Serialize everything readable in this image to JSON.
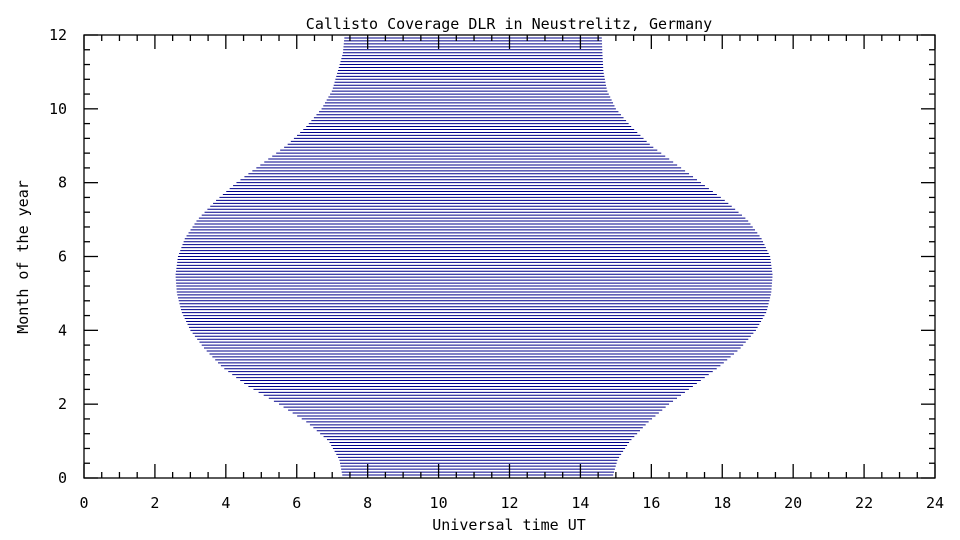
{
  "chart_data": {
    "type": "area",
    "title": "Callisto Coverage DLR in Neustrelitz, Germany",
    "xlabel": "Universal time UT",
    "ylabel": "Month of the year",
    "xlim": [
      0,
      24
    ],
    "ylim": [
      0,
      12
    ],
    "xticks": [
      0,
      2,
      4,
      6,
      8,
      10,
      12,
      14,
      16,
      18,
      20,
      22,
      24
    ],
    "yticks": [
      0,
      2,
      4,
      6,
      8,
      10,
      12
    ],
    "x_minor_step": 0.5,
    "y_minor_step": 0.4,
    "fill_style": "horizontal hatch lines",
    "grid": false,
    "color": "#00008b",
    "months": [
      0,
      0.5,
      1,
      1.5,
      2,
      2.5,
      3,
      3.5,
      4,
      4.5,
      5,
      5.5,
      6,
      6.5,
      7,
      7.5,
      8,
      8.5,
      9,
      9.5,
      10,
      10.5,
      11,
      11.5,
      12
    ],
    "start_ut": [
      7.3,
      7.2,
      6.9,
      6.3,
      5.5,
      4.6,
      3.9,
      3.4,
      3.0,
      2.75,
      2.62,
      2.58,
      2.65,
      2.85,
      3.2,
      3.7,
      4.3,
      5.0,
      5.7,
      6.25,
      6.7,
      7.0,
      7.15,
      7.3,
      7.35
    ],
    "end_ut": [
      14.9,
      15.05,
      15.4,
      15.9,
      16.5,
      17.2,
      17.9,
      18.5,
      18.95,
      19.25,
      19.38,
      19.42,
      19.35,
      19.1,
      18.7,
      18.1,
      17.4,
      16.7,
      16.0,
      15.45,
      15.0,
      14.75,
      14.65,
      14.62,
      14.6
    ]
  }
}
